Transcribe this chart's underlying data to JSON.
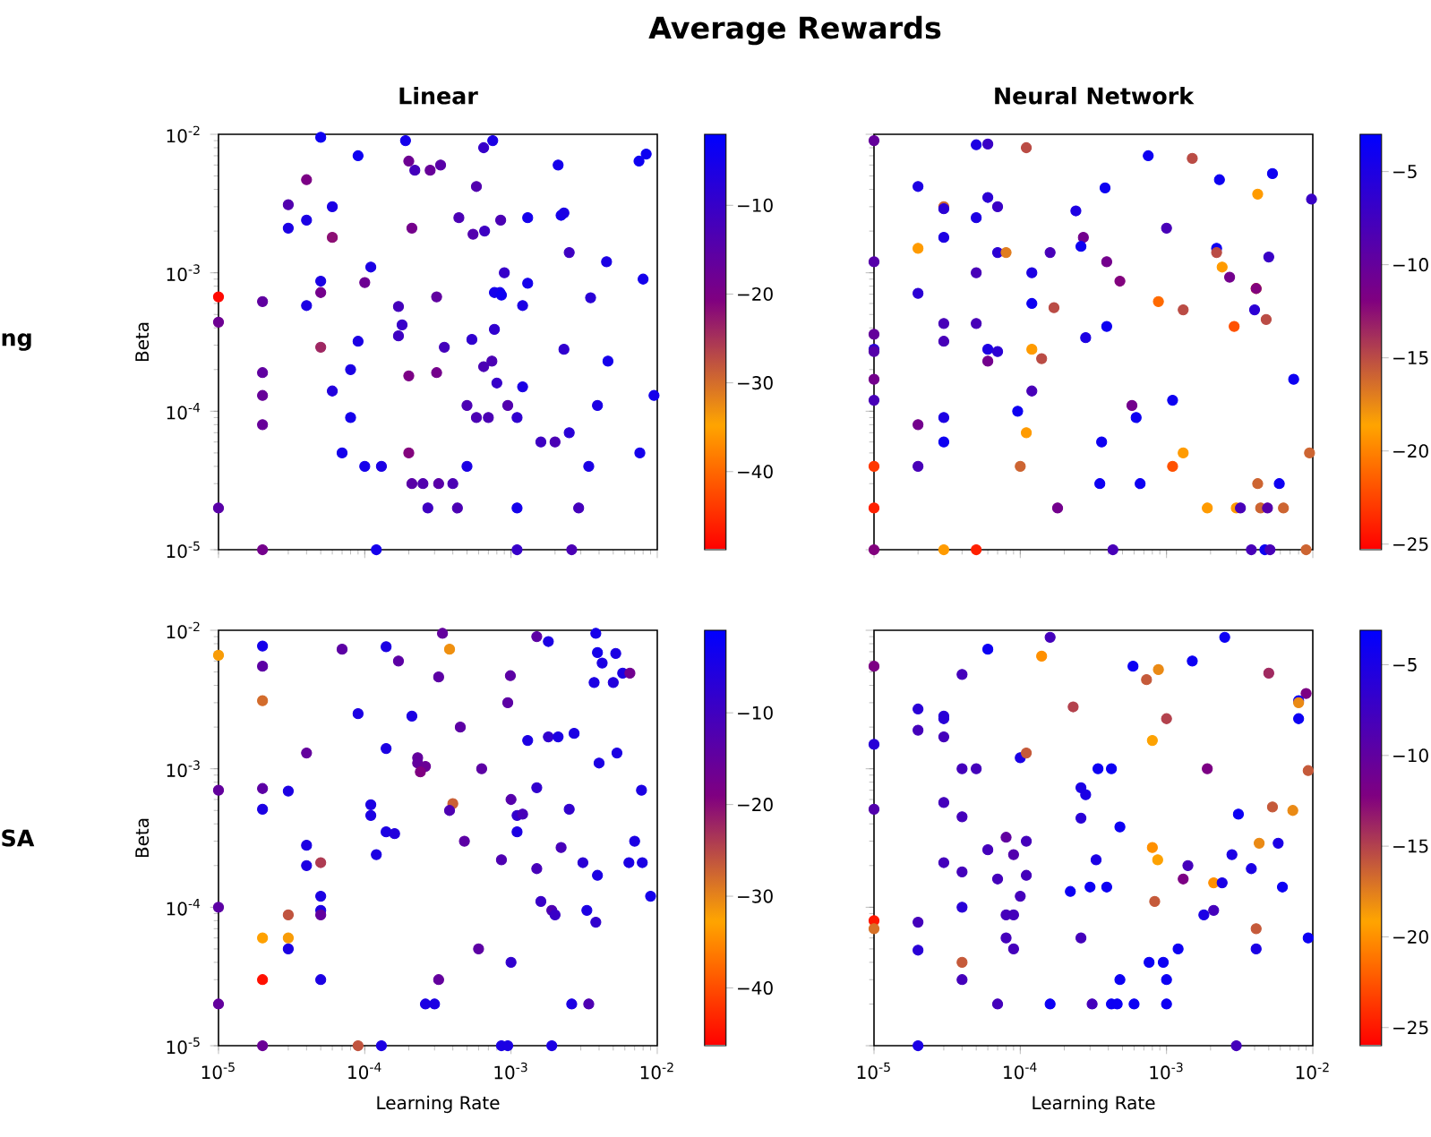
{
  "chart_data": [
    {
      "type": "scatter",
      "title": "Linear",
      "ylabel": "Beta",
      "annotations": [
        "Average Rewards",
        "ng"
      ],
      "marker": "circle",
      "log": "xy",
      "tick_labels": "y",
      "xlim": [
        1e-05,
        0.01
      ],
      "ylim": [
        1e-05,
        0.01
      ],
      "xticks": [
        {
          "value": 1e-05,
          "label": null
        },
        {
          "value": 0.0001,
          "label": null
        },
        {
          "value": 0.001,
          "label": null
        },
        {
          "value": 0.01,
          "label": null
        }
      ],
      "yticks": [
        {
          "value": 1e-05,
          "label": "10$^{-5}$"
        },
        {
          "value": 0.0001,
          "label": "10$^{-4}$"
        },
        {
          "value": 0.001,
          "label": "10$^{-3}$"
        },
        {
          "value": 0.01,
          "label": "10$^{-2}$"
        }
      ],
      "clim": [
        -48.8,
        -2
      ],
      "cticks": [
        {
          "value": -40,
          "label": "−40"
        },
        {
          "value": -30,
          "label": "−30"
        },
        {
          "value": -20,
          "label": "−20"
        },
        {
          "value": -10,
          "label": "−10"
        }
      ],
      "x": [
        5e-05,
        9e-05,
        0.00019,
        0.0002,
        0.00022,
        0.00028,
        0.00033,
        0.00065,
        0.00075,
        0.00058,
        0.00044,
        0.00055,
        0.00066,
        0.00085,
        0.0013,
        0.0021,
        0.0022,
        0.0023,
        0.0025,
        0.0075,
        0.0084,
        0.0045,
        0.008,
        0.0035,
        0.0046,
        0.0023,
        0.0095,
        0.0039,
        0.0076,
        0.0034,
        0.0025,
        0.002,
        0.0016,
        0.0029,
        0.0026,
        0.0011,
        0.0011,
        0.0009,
        0.00077,
        0.00084,
        0.00086,
        0.0012,
        0.0013,
        0.00077,
        0.00054,
        0.00035,
        0.00031,
        0.00031,
        0.00074,
        0.00065,
        0.0008,
        0.0012,
        0.0005,
        0.00058,
        0.0007,
        0.00095,
        0.0011,
        0.0005,
        0.0004,
        0.00032,
        0.00025,
        0.00021,
        0.00043,
        0.00027,
        0.0002,
        0.00013,
        0.0001,
        7e-05,
        8e-05,
        8e-05,
        9e-05,
        6e-05,
        0.00012,
        0.00017,
        0.00018,
        0.00017,
        0.0002,
        0.00021,
        0.00011,
        0.0001,
        5e-05,
        5e-05,
        4e-05,
        5e-05,
        6e-05,
        6e-05,
        4e-05,
        3e-05,
        3e-05,
        4e-05,
        2e-05,
        2e-05,
        2e-05,
        2e-05,
        2e-05,
        1e-05,
        1e-05,
        1e-05
      ],
      "values": [
        0.0095,
        0.007,
        0.009,
        0.0064,
        0.0055,
        0.0055,
        0.006,
        0.008,
        0.009,
        0.0042,
        0.0025,
        0.0019,
        0.002,
        0.0024,
        0.0025,
        0.006,
        0.0026,
        0.0027,
        0.0014,
        0.0064,
        0.0072,
        0.0012,
        0.0009,
        0.00066,
        0.00023,
        0.00028,
        0.00013,
        0.00011,
        5e-05,
        4e-05,
        7e-05,
        6e-05,
        6e-05,
        2e-05,
        1e-05,
        1e-05,
        2e-05,
        0.001,
        0.00072,
        0.00072,
        0.00069,
        0.00058,
        0.00084,
        0.00039,
        0.00033,
        0.00029,
        0.00067,
        0.00019,
        0.00023,
        0.00021,
        0.00016,
        0.00015,
        0.00011,
        9e-05,
        9e-05,
        0.00011,
        9e-05,
        4e-05,
        3e-05,
        3e-05,
        3e-05,
        3e-05,
        2e-05,
        2e-05,
        5e-05,
        4e-05,
        4e-05,
        5e-05,
        9e-05,
        0.0002,
        0.00032,
        0.00014,
        1e-05,
        0.00035,
        0.00042,
        0.00057,
        0.00018,
        0.0021,
        0.0011,
        0.00085,
        0.00087,
        0.00072,
        0.00058,
        0.00029,
        0.0018,
        0.003,
        0.0024,
        0.0021,
        0.0031,
        0.0047,
        0.00062,
        0.00019,
        0.00013,
        8e-05,
        1e-05,
        0.00067,
        0.00044,
        2e-05
      ],
      "cvalues": [
        -4,
        -4,
        -5,
        -18,
        -12,
        -17,
        -15,
        -10,
        -6,
        -14,
        -13,
        -14,
        -11,
        -13,
        -5,
        -5,
        -5,
        -6,
        -11,
        -4,
        -4,
        -6,
        -5,
        -8,
        -5,
        -9,
        -5,
        -6,
        -5,
        -6,
        -8,
        -13,
        -11,
        -12,
        -13,
        -10,
        -5,
        -10,
        -5,
        -5,
        -4,
        -6,
        -5,
        -9,
        -9,
        -12,
        -16,
        -19,
        -13,
        -13,
        -10,
        -6,
        -13,
        -13,
        -13,
        -14,
        -9,
        -6,
        -13,
        -15,
        -14,
        -15,
        -13,
        -11,
        -21,
        -6,
        -5,
        -5,
        -5,
        -6,
        -6,
        -7,
        -5,
        -11,
        -10,
        -12,
        -20,
        -19,
        -6,
        -18,
        -6,
        -19,
        -6,
        -24,
        -22,
        -6,
        -6,
        -6,
        -14,
        -20,
        -16,
        -16,
        -17,
        -17,
        -19,
        -48,
        -18,
        -15
      ]
    },
    {
      "type": "scatter",
      "title": "Neural Network",
      "marker": "circle",
      "log": "xy",
      "tick_labels": false,
      "xlim": [
        1e-05,
        0.01
      ],
      "ylim": [
        1e-05,
        0.01
      ],
      "xticks": [
        {
          "value": 1e-05,
          "label": null
        },
        {
          "value": 0.0001,
          "label": null
        },
        {
          "value": 0.001,
          "label": null
        },
        {
          "value": 0.01,
          "label": null
        }
      ],
      "yticks": [
        {
          "value": 1e-05,
          "label": null
        },
        {
          "value": 0.0001,
          "label": null
        },
        {
          "value": 0.001,
          "label": null
        },
        {
          "value": 0.01,
          "label": null
        }
      ],
      "clim": [
        -25.3,
        -3
      ],
      "cticks": [
        {
          "value": -25,
          "label": "−25"
        },
        {
          "value": -20,
          "label": "−20"
        },
        {
          "value": -15,
          "label": "−15"
        },
        {
          "value": -10,
          "label": "−10"
        },
        {
          "value": -5,
          "label": "−5"
        }
      ],
      "x": [
        1e-05,
        5e-05,
        6e-05,
        0.00011,
        0.00075,
        0.0015,
        2e-05,
        3e-05,
        3e-05,
        6e-05,
        7e-05,
        5e-05,
        3e-05,
        2e-05,
        7e-05,
        8e-05,
        0.00016,
        0.00027,
        0.00026,
        0.00024,
        0.00038,
        0.001,
        0.0023,
        0.0053,
        0.0042,
        0.0098,
        0.0022,
        0.0022,
        0.0024,
        0.005,
        0.0027,
        0.0041,
        0.0041,
        0.004,
        0.0048,
        0.0029,
        0.0013,
        0.00088,
        0.00048,
        0.00039,
        0.00012,
        5e-05,
        1e-05,
        2e-05,
        0.00012,
        0.00017,
        3e-05,
        3e-05,
        5e-05,
        0.00039,
        0.00028,
        1e-05,
        1e-05,
        1e-05,
        6e-05,
        7e-05,
        6e-05,
        0.00012,
        0.00014,
        1e-05,
        1e-05,
        0.00012,
        9.6e-05,
        0.00058,
        0.00062,
        0.0011,
        2e-05,
        3e-05,
        3e-05,
        0.00011,
        0.00036,
        0.0013,
        0.0095,
        0.0074,
        0.0011,
        1e-05,
        2e-05,
        0.0001,
        0.00035,
        0.00066,
        0.0042,
        0.0059,
        1e-05,
        0.00018,
        0.0019,
        0.003,
        0.0032,
        0.0044,
        0.0049,
        0.0063,
        1e-05,
        3e-05,
        5e-05,
        0.00043,
        0.0038,
        0.0047,
        0.0051,
        0.009
      ],
      "values": [
        0.009,
        0.0084,
        0.0085,
        0.008,
        0.007,
        0.0067,
        0.0042,
        0.003,
        0.0029,
        0.0035,
        0.003,
        0.0025,
        0.0018,
        0.0015,
        0.0014,
        0.0014,
        0.0014,
        0.0018,
        0.00155,
        0.0028,
        0.0041,
        0.0021,
        0.0047,
        0.0052,
        0.0037,
        0.0034,
        0.0015,
        0.0014,
        0.0011,
        0.0013,
        0.00093,
        0.00077,
        0.00077,
        0.00054,
        0.00046,
        0.00041,
        0.00054,
        0.00062,
        0.00087,
        0.0012,
        0.001,
        0.001,
        0.0012,
        0.00071,
        0.0006,
        0.00056,
        0.00043,
        0.00032,
        0.00043,
        0.00041,
        0.00034,
        0.00036,
        0.00028,
        0.00027,
        0.00028,
        0.00027,
        0.00023,
        0.00028,
        0.00024,
        0.00017,
        0.00012,
        0.00014,
        0.0001,
        0.00011,
        9e-05,
        0.00012,
        8e-05,
        9e-05,
        6e-05,
        7e-05,
        6e-05,
        5e-05,
        5e-05,
        0.00017,
        4e-05,
        4e-05,
        4e-05,
        4e-05,
        3e-05,
        3e-05,
        3e-05,
        3e-05,
        2e-05,
        2e-05,
        2e-05,
        2e-05,
        2e-05,
        2e-05,
        2e-05,
        2e-05,
        1e-05,
        1e-05,
        1e-05,
        1e-05,
        1e-05,
        1e-05,
        1e-05,
        1e-05
      ],
      "cvalues": [
        -10,
        -5,
        -7,
        -15,
        -4,
        -15,
        -5,
        -16,
        -6,
        -6,
        -7,
        -5,
        -5,
        -19,
        -6,
        -17,
        -8,
        -11,
        -4,
        -5,
        -4,
        -8,
        -4,
        -4,
        -19,
        -7,
        -4,
        -15,
        -19,
        -7,
        -11,
        -18,
        -12,
        -6,
        -15,
        -22,
        -15,
        -21,
        -12,
        -11,
        -5,
        -8,
        -9,
        -6,
        -4,
        -15,
        -8,
        -8,
        -8,
        -4,
        -5,
        -10,
        -6,
        -9,
        -5,
        -6,
        -11,
        -19,
        -15,
        -11,
        -8,
        -8,
        -4,
        -11,
        -4,
        -4,
        -11,
        -5,
        -4,
        -19,
        -4,
        -19,
        -16,
        -4,
        -22,
        -23,
        -8,
        -16,
        -4,
        -4,
        -16,
        -4,
        -24,
        -11,
        -19,
        -19,
        -8,
        -16,
        -9,
        -16,
        -12,
        -19,
        -24,
        -8,
        -8,
        -4,
        -8,
        -16
      ]
    },
    {
      "type": "scatter",
      "xlabel": "Learning Rate",
      "ylabel": "Beta",
      "annotations": [
        "SA"
      ],
      "marker": "circle",
      "log": "xy",
      "xlim": [
        1e-05,
        0.01
      ],
      "ylim": [
        1e-05,
        0.01
      ],
      "xticks": [
        {
          "value": 1e-05,
          "label": "10$^{-5}$"
        },
        {
          "value": 0.0001,
          "label": "10$^{-4}$"
        },
        {
          "value": 0.001,
          "label": "10$^{-3}$"
        },
        {
          "value": 0.01,
          "label": "10$^{-2}$"
        }
      ],
      "yticks": [
        {
          "value": 1e-05,
          "label": "10$^{-5}$"
        },
        {
          "value": 0.0001,
          "label": "10$^{-4}$"
        },
        {
          "value": 0.001,
          "label": "10$^{-3}$"
        },
        {
          "value": 0.01,
          "label": "10$^{-2}$"
        }
      ],
      "clim": [
        -46.3,
        -1
      ],
      "cticks": [
        {
          "value": -40,
          "label": "−40"
        },
        {
          "value": -30,
          "label": "−30"
        },
        {
          "value": -20,
          "label": "−20"
        },
        {
          "value": -10,
          "label": "−10"
        }
      ],
      "x": [
        1e-05,
        2e-05,
        2e-05,
        2e-05,
        7e-05,
        0.00014,
        0.00017,
        0.00034,
        0.00038,
        0.00032,
        9e-05,
        0.00021,
        0.00045,
        0.00014,
        0.00023,
        0.00023,
        0.00026,
        0.00024,
        4e-05,
        2e-05,
        1e-05,
        3e-05,
        2e-05,
        0.00011,
        0.00011,
        0.00014,
        0.00016,
        0.00012,
        0.0004,
        0.00038,
        0.00048,
        0.00063,
        4e-05,
        4e-05,
        5e-05,
        5e-05,
        5e-05,
        5e-05,
        3e-05,
        2e-05,
        3e-05,
        3e-05,
        2e-05,
        5e-05,
        1e-05,
        1e-05,
        2e-05,
        9e-05,
        0.00013,
        0.00032,
        0.0006,
        0.00026,
        0.0003,
        0.001,
        0.00086,
        0.00095,
        0.0019,
        0.0026,
        0.0034,
        0.00086,
        0.0015,
        0.0016,
        0.0019,
        0.002,
        0.0033,
        0.0038,
        0.00099,
        0.00095,
        0.0015,
        0.0018,
        0.0038,
        0.0039,
        0.0042,
        0.0052,
        0.0037,
        0.005,
        0.0058,
        0.0065,
        0.0013,
        0.0018,
        0.0021,
        0.0027,
        0.004,
        0.0053,
        0.0078,
        0.007,
        0.0064,
        0.0079,
        0.009,
        0.0031,
        0.0039,
        0.0022,
        0.0025,
        0.0015,
        0.001,
        0.0011,
        0.0012,
        0.0011
      ],
      "values": [
        0.0066,
        0.0077,
        0.0055,
        0.0031,
        0.0073,
        0.0076,
        0.006,
        0.0095,
        0.0073,
        0.0046,
        0.0025,
        0.0024,
        0.002,
        0.0014,
        0.0012,
        0.0011,
        0.00104,
        0.00095,
        0.0013,
        0.00072,
        0.0007,
        0.00069,
        0.00051,
        0.00055,
        0.00046,
        0.00035,
        0.00034,
        0.00024,
        0.00056,
        0.0005,
        0.0003,
        0.001,
        0.00028,
        0.0002,
        0.00021,
        0.00012,
        9.5e-05,
        8.8e-05,
        8.8e-05,
        6e-05,
        6e-05,
        5e-05,
        3e-05,
        3e-05,
        0.0001,
        2e-05,
        1e-05,
        1e-05,
        1e-05,
        3e-05,
        5e-05,
        2e-05,
        2e-05,
        4e-05,
        1e-05,
        1e-05,
        1e-05,
        2e-05,
        2e-05,
        0.00022,
        0.00019,
        0.00011,
        9.5e-05,
        8.8e-05,
        9.5e-05,
        7.8e-05,
        0.0047,
        0.003,
        0.009,
        0.0083,
        0.0095,
        0.0069,
        0.0058,
        0.0068,
        0.0042,
        0.0042,
        0.0049,
        0.0049,
        0.0016,
        0.0017,
        0.0017,
        0.0018,
        0.0011,
        0.0013,
        0.0007,
        0.0003,
        0.00021,
        0.00021,
        0.00012,
        0.00021,
        0.00017,
        0.00027,
        0.00051,
        0.00073,
        0.0006,
        0.00046,
        0.00047,
        0.00035
      ],
      "cvalues": [
        -32,
        -4,
        -14,
        -28,
        -14,
        -5,
        -14,
        -15,
        -31,
        -14,
        -5,
        -5,
        -14,
        -5,
        -15,
        -15,
        -16,
        -19,
        -15,
        -14,
        -15,
        -5,
        -5,
        -5,
        -5,
        -5,
        -6,
        -5,
        -27,
        -12,
        -14,
        -14,
        -5,
        -5,
        -24,
        -5,
        -5,
        -15,
        -26,
        -33,
        -32,
        -5,
        -45,
        -5,
        -14,
        -15,
        -16,
        -26,
        -5,
        -15,
        -14,
        -5,
        -5,
        -8,
        -5,
        -5,
        -5,
        -5,
        -12,
        -12,
        -11,
        -9,
        -12,
        -9,
        -5,
        -8,
        -14,
        -14,
        -14,
        -5,
        -4,
        -4,
        -5,
        -5,
        -5,
        -6,
        -5,
        -17,
        -5,
        -8,
        -5,
        -5,
        -5,
        -5,
        -5,
        -5,
        -5,
        -5,
        -4,
        -7,
        -5,
        -11,
        -8,
        -8,
        -13,
        -8,
        -11,
        -5
      ]
    },
    {
      "type": "scatter",
      "xlabel": "Learning Rate",
      "marker": "circle",
      "log": "xy",
      "tick_labels": "x",
      "xlim": [
        1e-05,
        0.01
      ],
      "ylim": [
        1e-05,
        0.01
      ],
      "xticks": [
        {
          "value": 1e-05,
          "label": "10$^{-5}$"
        },
        {
          "value": 0.0001,
          "label": "10$^{-4}$"
        },
        {
          "value": 0.001,
          "label": "10$^{-3}$"
        },
        {
          "value": 0.01,
          "label": "10$^{-2}$"
        }
      ],
      "yticks": [
        {
          "value": 1e-05,
          "label": null
        },
        {
          "value": 0.0001,
          "label": null
        },
        {
          "value": 0.001,
          "label": null
        },
        {
          "value": 0.01,
          "label": null
        }
      ],
      "clim": [
        -26,
        -3.1
      ],
      "cticks": [
        {
          "value": -25,
          "label": "−25"
        },
        {
          "value": -20,
          "label": "−20"
        },
        {
          "value": -15,
          "label": "−15"
        },
        {
          "value": -10,
          "label": "−10"
        },
        {
          "value": -5,
          "label": "−5"
        }
      ],
      "x": [
        1e-05,
        1e-05,
        1e-05,
        1e-05,
        1e-05,
        2e-05,
        2e-05,
        3e-05,
        3e-05,
        3e-05,
        4e-05,
        6e-05,
        0.00016,
        0.00014,
        4e-05,
        5e-05,
        3e-05,
        4e-05,
        0.0001,
        0.00011,
        0.00023,
        0.00059,
        0.00073,
        0.00088,
        0.0015,
        0.0025,
        0.005,
        0.001,
        0.0008,
        0.009,
        0.008,
        0.008,
        0.008,
        0.0093,
        0.0019,
        0.00034,
        0.00042,
        0.00026,
        0.00028,
        0.00026,
        0.00048,
        0.00033,
        0.0003,
        0.00039,
        0.00022,
        0.00011,
        0.00011,
        8e-05,
        6e-05,
        9e-05,
        7e-05,
        0.0001,
        3e-05,
        4e-05,
        4e-05,
        2e-05,
        2e-05,
        8e-05,
        9e-05,
        8e-05,
        9e-05,
        4e-05,
        4e-05,
        7e-05,
        2e-05,
        0.00016,
        0.00026,
        0.00031,
        0.00042,
        0.00046,
        0.00048,
        0.0006,
        0.0008,
        0.00087,
        0.00083,
        0.0013,
        0.0014,
        0.0018,
        0.0021,
        0.0021,
        0.0024,
        0.0028,
        0.0031,
        0.0038,
        0.0043,
        0.0053,
        0.0058,
        0.0062,
        0.0073,
        0.0093,
        0.0041,
        0.0041,
        0.0012,
        0.00076,
        0.00095,
        0.001,
        0.001,
        0.003
      ],
      "values": [
        0.0055,
        0.0015,
        0.00051,
        8e-05,
        7e-05,
        0.0027,
        0.0019,
        0.0024,
        0.0023,
        0.0017,
        0.0048,
        0.0073,
        0.0089,
        0.0065,
        0.001,
        0.001,
        0.00057,
        0.00045,
        0.0012,
        0.0013,
        0.0028,
        0.0055,
        0.0044,
        0.0052,
        0.006,
        0.0089,
        0.0049,
        0.0023,
        0.0016,
        0.0035,
        0.0031,
        0.003,
        0.0023,
        0.00097,
        0.001,
        0.001,
        0.001,
        0.00073,
        0.00065,
        0.00044,
        0.00038,
        0.00022,
        0.00014,
        0.00014,
        0.00013,
        0.0003,
        0.00017,
        0.00032,
        0.00026,
        0.00024,
        0.00016,
        0.00012,
        0.00021,
        0.00018,
        0.0001,
        7.8e-05,
        4.9e-05,
        8.8e-05,
        8.8e-05,
        6e-05,
        5e-05,
        4e-05,
        3e-05,
        2e-05,
        1e-05,
        2e-05,
        6e-05,
        2e-05,
        2e-05,
        2e-05,
        3e-05,
        2e-05,
        0.00027,
        0.00022,
        0.00011,
        0.00016,
        0.0002,
        8.8e-05,
        9.5e-05,
        0.00015,
        0.00015,
        0.00024,
        0.00047,
        0.00019,
        0.00029,
        0.00053,
        0.00029,
        0.00014,
        0.0005,
        6e-05,
        7e-05,
        5e-05,
        5e-05,
        4e-05,
        4e-05,
        3e-05,
        2e-05,
        1e-05
      ],
      "cvalues": [
        -12,
        -6,
        -9,
        -25,
        -17,
        -6,
        -8,
        -6,
        -6,
        -8,
        -8,
        -4,
        -8,
        -20,
        -8,
        -8,
        -8,
        -8,
        -5,
        -16,
        -15,
        -4,
        -16,
        -18,
        -4,
        -4,
        -14,
        -15,
        -19,
        -12,
        -4,
        -18,
        -4,
        -16,
        -12,
        -4,
        -4,
        -5,
        -5,
        -6,
        -4,
        -5,
        -4,
        -4,
        -4,
        -8,
        -8,
        -10,
        -8,
        -9,
        -8,
        -8,
        -8,
        -8,
        -6,
        -8,
        -6,
        -8,
        -8,
        -8,
        -8,
        -16,
        -8,
        -8,
        -5,
        -4,
        -8,
        -8,
        -4,
        -4,
        -4,
        -4,
        -20,
        -19,
        -16,
        -12,
        -8,
        -5,
        -8,
        -20,
        -5,
        -5,
        -4,
        -5,
        -18,
        -16,
        -5,
        -4,
        -18,
        -4,
        -16,
        -5,
        -4,
        -4,
        -4,
        -4,
        -4,
        -8
      ]
    }
  ]
}
